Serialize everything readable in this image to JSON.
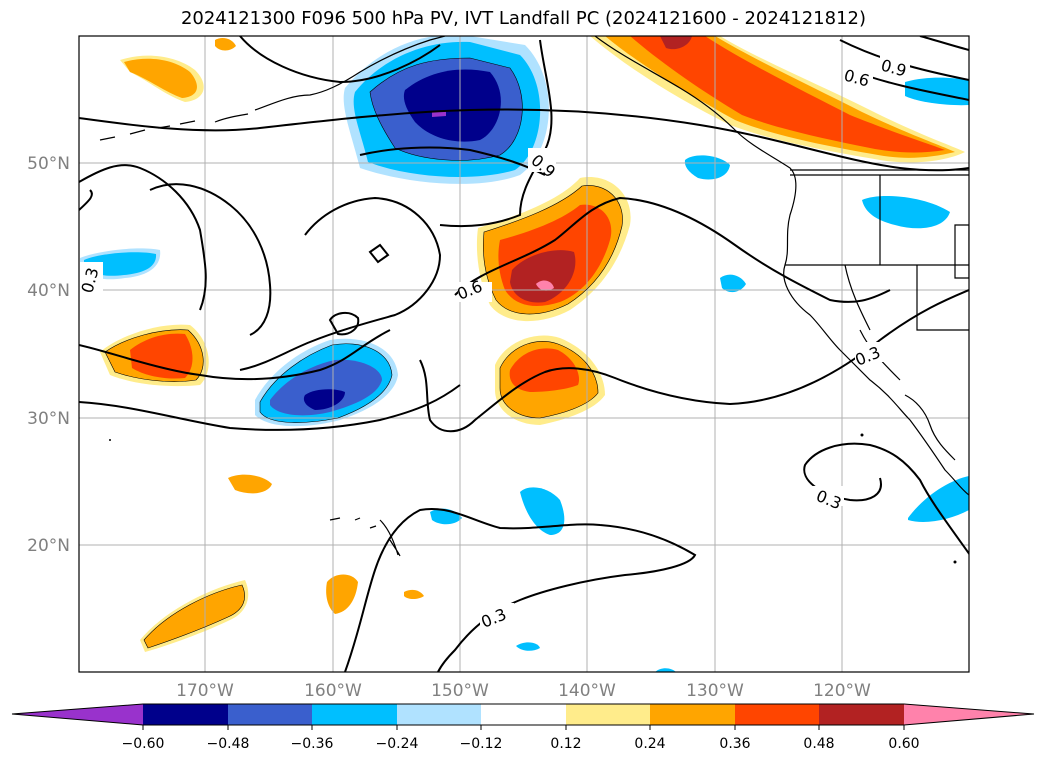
{
  "title": "2024121300 F096 500 hPa PV, IVT Landfall PC (2024121600 - 2024121812)",
  "map": {
    "lat_labels": [
      "50°N",
      "40°N",
      "30°N",
      "20°N"
    ],
    "lon_labels": [
      "170°W",
      "160°W",
      "150°W",
      "140°W",
      "130°W",
      "120°W"
    ],
    "contour_labels": [
      "0.9",
      "0.6",
      "0.9",
      "0.3",
      "0.6",
      "0.3",
      "0.3",
      "0.3"
    ]
  },
  "colorbar": {
    "ticks": [
      "−0.60",
      "−0.48",
      "−0.36",
      "−0.24",
      "−0.12",
      "0.12",
      "0.24",
      "0.36",
      "0.48",
      "0.60"
    ],
    "colors": [
      "#9932cc",
      "#00008b",
      "#3a5fcd",
      "#00bfff",
      "#b0e2ff",
      "#ffffff",
      "#ffec8b",
      "#ffa500",
      "#ff4500",
      "#b22222",
      "#ff82ab"
    ]
  }
}
